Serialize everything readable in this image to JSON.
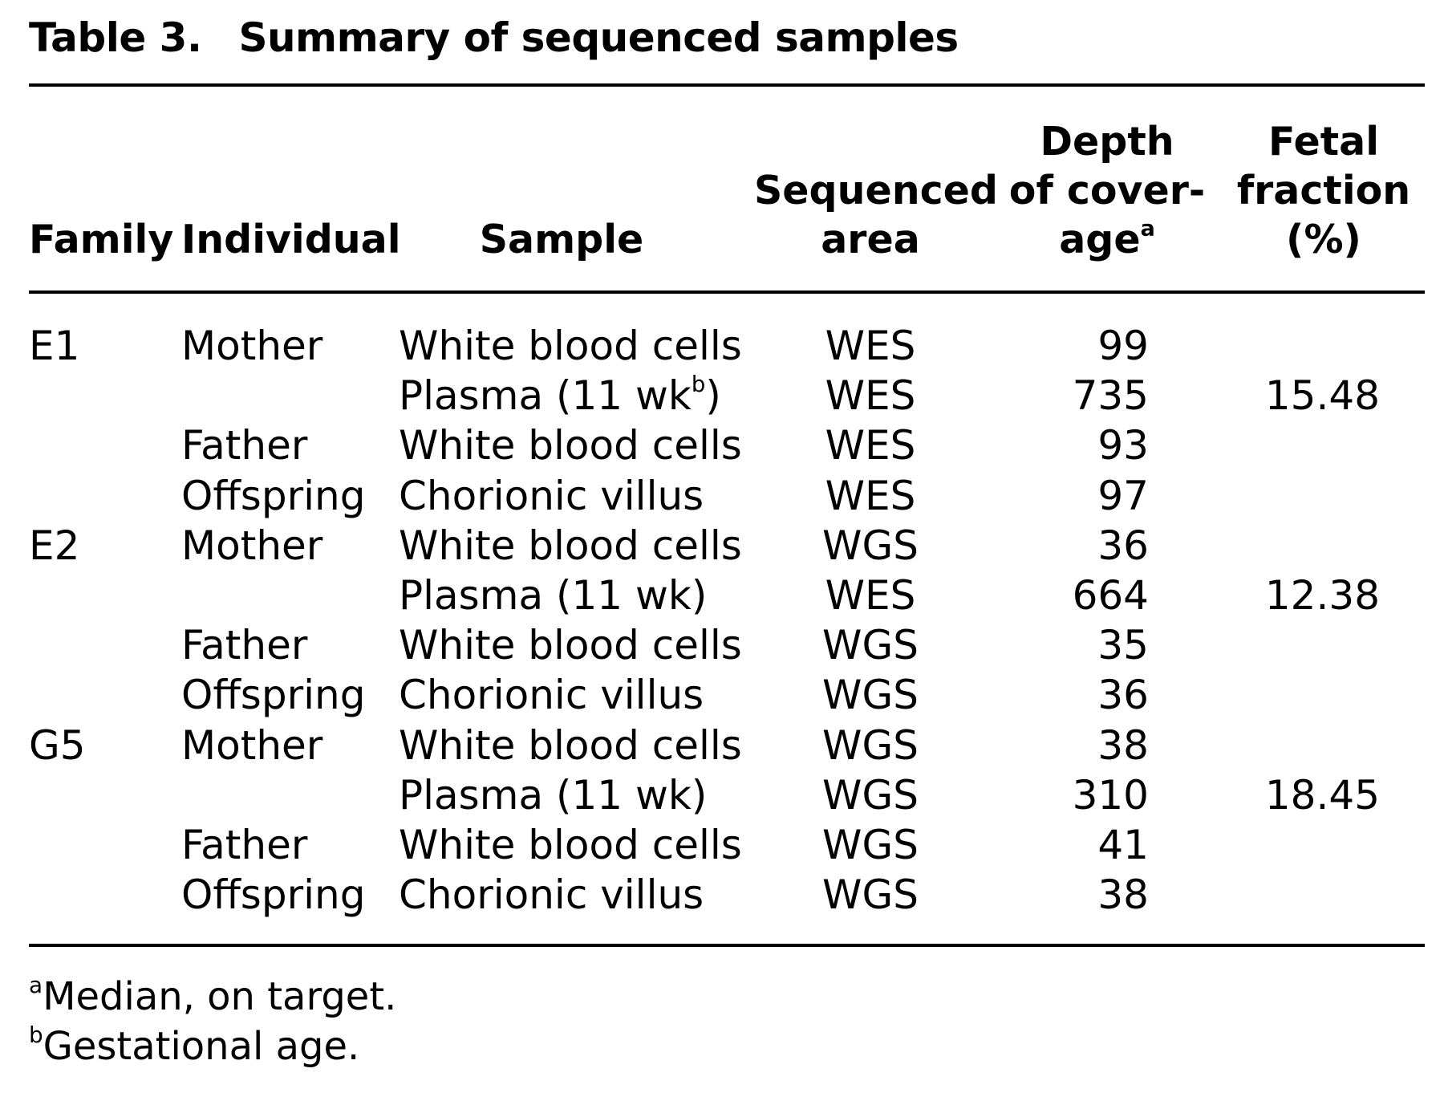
{
  "table": {
    "label": "Table 3.",
    "title": "Summary of sequenced samples",
    "headers": {
      "family": "Family",
      "individual": "Individual",
      "sample": "Sample",
      "area_line1": "Sequenced",
      "area_line2": "area",
      "depth_line1": "Depth",
      "depth_line2": "of cover-",
      "depth_line3": "age",
      "depth_mark": "a",
      "fetal_line1": "Fetal",
      "fetal_line2": "fraction",
      "fetal_line3": "(%)"
    },
    "rows": [
      {
        "family": "E1",
        "individual": "Mother",
        "sample": "White blood cells",
        "sample_mark": "",
        "sample_after": "",
        "area": "WES",
        "depth": "99",
        "fetal": ""
      },
      {
        "family": "",
        "individual": "",
        "sample": "Plasma (11 wk",
        "sample_mark": "b",
        "sample_after": ")",
        "area": "WES",
        "depth": "735",
        "fetal": "15.48"
      },
      {
        "family": "",
        "individual": "Father",
        "sample": "White blood cells",
        "sample_mark": "",
        "sample_after": "",
        "area": "WES",
        "depth": "93",
        "fetal": ""
      },
      {
        "family": "",
        "individual": "Offspring",
        "sample": "Chorionic villus",
        "sample_mark": "",
        "sample_after": "",
        "area": "WES",
        "depth": "97",
        "fetal": ""
      },
      {
        "family": "E2",
        "individual": "Mother",
        "sample": "White blood cells",
        "sample_mark": "",
        "sample_after": "",
        "area": "WGS",
        "depth": "36",
        "fetal": ""
      },
      {
        "family": "",
        "individual": "",
        "sample": "Plasma (11 wk)",
        "sample_mark": "",
        "sample_after": "",
        "area": "WES",
        "depth": "664",
        "fetal": "12.38"
      },
      {
        "family": "",
        "individual": "Father",
        "sample": "White blood cells",
        "sample_mark": "",
        "sample_after": "",
        "area": "WGS",
        "depth": "35",
        "fetal": ""
      },
      {
        "family": "",
        "individual": "Offspring",
        "sample": "Chorionic villus",
        "sample_mark": "",
        "sample_after": "",
        "area": "WGS",
        "depth": "36",
        "fetal": ""
      },
      {
        "family": "G5",
        "individual": "Mother",
        "sample": "White blood cells",
        "sample_mark": "",
        "sample_after": "",
        "area": "WGS",
        "depth": "38",
        "fetal": ""
      },
      {
        "family": "",
        "individual": "",
        "sample": "Plasma (11 wk)",
        "sample_mark": "",
        "sample_after": "",
        "area": "WGS",
        "depth": "310",
        "fetal": "18.45"
      },
      {
        "family": "",
        "individual": "Father",
        "sample": "White blood cells",
        "sample_mark": "",
        "sample_after": "",
        "area": "WGS",
        "depth": "41",
        "fetal": ""
      },
      {
        "family": "",
        "individual": "Offspring",
        "sample": "Chorionic villus",
        "sample_mark": "",
        "sample_after": "",
        "area": "WGS",
        "depth": "38",
        "fetal": ""
      }
    ],
    "footnotes": [
      {
        "mark": "a",
        "text": "Median, on target."
      },
      {
        "mark": "b",
        "text": "Gestational age."
      }
    ]
  }
}
